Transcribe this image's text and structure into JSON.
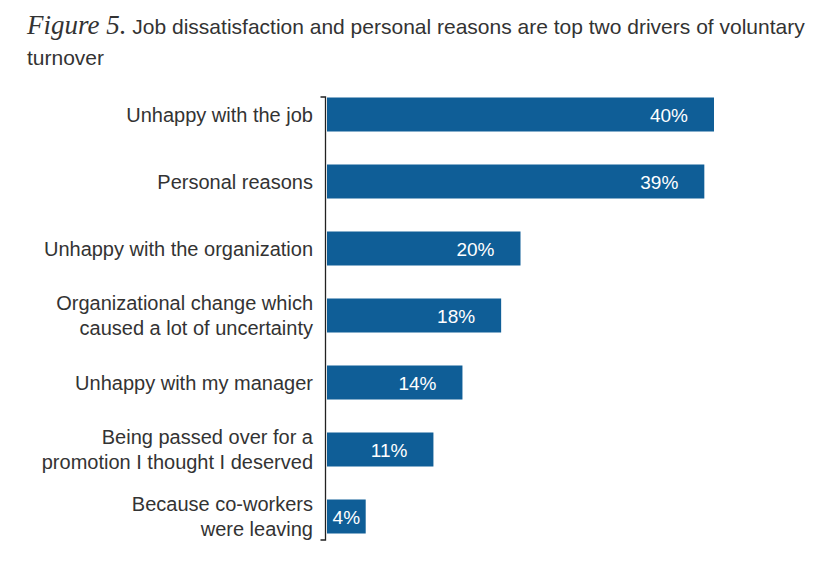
{
  "chart_data": {
    "type": "bar",
    "orientation": "horizontal",
    "figure": "Figure 5.",
    "title": "Job dissatisfaction and personal reasons are top two drivers of voluntary turnover",
    "categories": [
      "Unhappy with the job",
      "Personal reasons",
      "Unhappy with the organization",
      "Organizational change which caused a lot of uncertainty",
      "Unhappy with my manager",
      "Being passed over for a promotion I thought I deserved",
      "Because co-workers were leaving"
    ],
    "values": [
      40,
      39,
      20,
      18,
      14,
      11,
      4
    ],
    "value_labels": [
      "40%",
      "39%",
      "20%",
      "18%",
      "14%",
      "11%",
      "4%"
    ],
    "color": "#0f5e97",
    "xlim": [
      0,
      40
    ],
    "data_labels": true,
    "tick_labels": "y"
  }
}
